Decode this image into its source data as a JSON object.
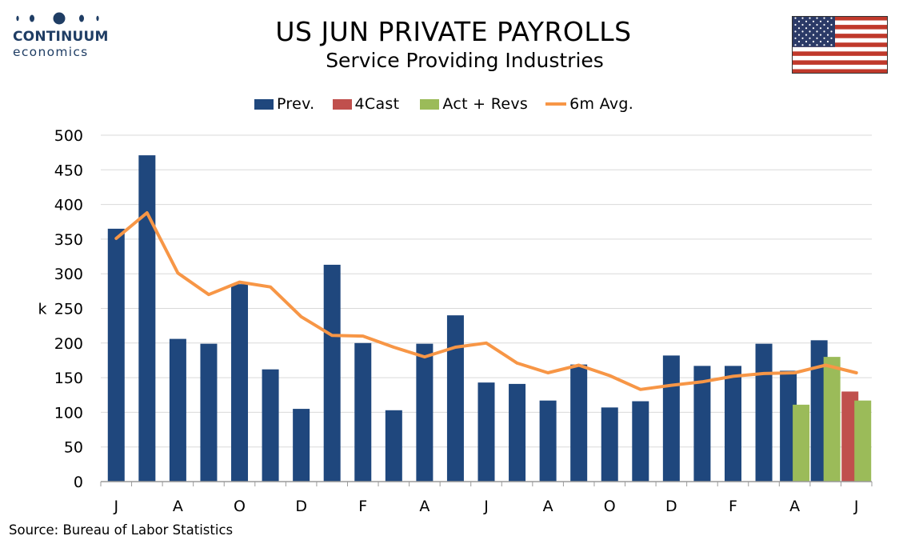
{
  "branding": {
    "logo_line1": "CONTINUUM",
    "logo_line2": "economics"
  },
  "header": {
    "title": "US JUN PRIVATE PAYROLLS",
    "subtitle": "Service Providing Industries"
  },
  "footer": {
    "source": "Source: Bureau of Labor Statistics"
  },
  "colors": {
    "prev": "#1f477d",
    "fcast": "#c0504d",
    "act": "#9bbb59",
    "avg": "#f79646",
    "grid": "#d9d9d9",
    "logo": "#1f3d64"
  },
  "chart_data": {
    "type": "bar",
    "title": "US JUN PRIVATE PAYROLLS",
    "subtitle": "Service Providing Industries",
    "ylabel": "k",
    "ylim": [
      0,
      500
    ],
    "yticks": [
      0,
      50,
      100,
      150,
      200,
      250,
      300,
      350,
      400,
      450,
      500
    ],
    "grid": true,
    "legend_position": "top",
    "x_tick_labels": [
      "J",
      "A",
      "O",
      "D",
      "F",
      "A",
      "J",
      "A",
      "O",
      "D",
      "F",
      "A",
      "J"
    ],
    "series": [
      {
        "name": "Prev.",
        "kind": "bar",
        "color": "#1f477d",
        "values": [
          365,
          471,
          206,
          199,
          285,
          162,
          105,
          313,
          200,
          103,
          199,
          240,
          143,
          141,
          117,
          169,
          107,
          116,
          182,
          167,
          167,
          199,
          160,
          204,
          null
        ]
      },
      {
        "name": "4Cast",
        "kind": "bar",
        "color": "#c0504d",
        "values": [
          null,
          null,
          null,
          null,
          null,
          null,
          null,
          null,
          null,
          null,
          null,
          null,
          null,
          null,
          null,
          null,
          null,
          null,
          null,
          null,
          null,
          null,
          null,
          null,
          130
        ]
      },
      {
        "name": "Act + Revs",
        "kind": "bar",
        "color": "#9bbb59",
        "values": [
          null,
          null,
          null,
          null,
          null,
          null,
          null,
          null,
          null,
          null,
          null,
          null,
          null,
          null,
          null,
          null,
          null,
          null,
          null,
          null,
          null,
          null,
          111,
          180,
          117
        ]
      },
      {
        "name": "6m Avg.",
        "kind": "line",
        "color": "#f79646",
        "values": [
          351,
          388,
          301,
          270,
          288,
          281,
          238,
          211,
          210,
          194,
          180,
          194,
          200,
          171,
          157,
          168,
          153,
          133,
          139,
          144,
          152,
          156,
          157,
          168,
          157
        ]
      }
    ]
  }
}
